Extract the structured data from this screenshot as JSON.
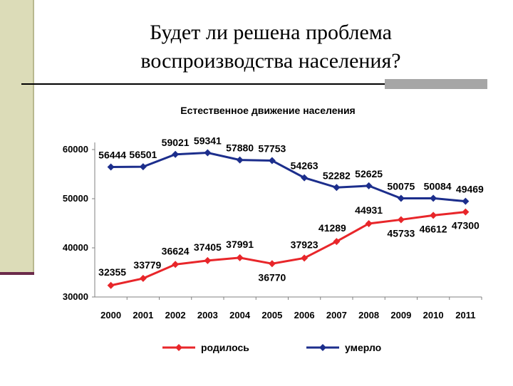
{
  "slide": {
    "title_line1": "Будет ли решена проблема",
    "title_line2": "воспроизводства населения?"
  },
  "chart_data": {
    "type": "line",
    "title": "Естественное движение населения",
    "categories": [
      "2000",
      "2001",
      "2002",
      "2003",
      "2004",
      "2005",
      "2006",
      "2007",
      "2008",
      "2009",
      "2010",
      "2011"
    ],
    "series": [
      {
        "name": "родилось",
        "color": "#e8262a",
        "values": [
          32355,
          33779,
          36624,
          37405,
          37991,
          36770,
          37923,
          41289,
          44931,
          45733,
          46612,
          47300
        ]
      },
      {
        "name": "умерло",
        "color": "#1c2e8c",
        "values": [
          56444,
          56501,
          59021,
          59341,
          57880,
          57753,
          54263,
          52282,
          52625,
          50075,
          50084,
          49469
        ]
      }
    ],
    "yticks": [
      30000,
      40000,
      50000,
      60000
    ],
    "ylim": [
      30000,
      60000
    ],
    "grid": false,
    "legend": "bottom",
    "background": "#ffffff"
  }
}
